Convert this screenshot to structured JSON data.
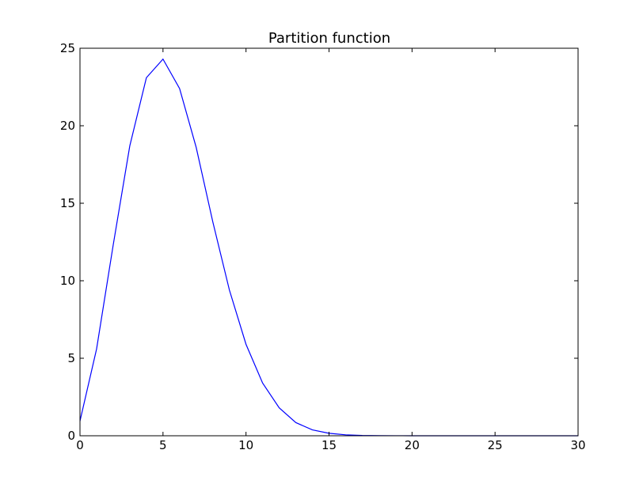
{
  "chart_data": {
    "type": "line",
    "title": "Partition function",
    "xlabel": "",
    "ylabel": "",
    "xlim": [
      0,
      30
    ],
    "ylim": [
      0,
      25
    ],
    "xticks": [
      0,
      5,
      10,
      15,
      20,
      25,
      30
    ],
    "yticks": [
      0,
      5,
      10,
      15,
      20,
      25
    ],
    "grid": false,
    "legend": "none",
    "series": [
      {
        "color": "#0000ff",
        "x": [
          0,
          1,
          2,
          3,
          4,
          5,
          6,
          7,
          8,
          9,
          10,
          11,
          12,
          13,
          14,
          15,
          16,
          17,
          18,
          19,
          20,
          21,
          22,
          23,
          24,
          25,
          26,
          27,
          28,
          29,
          30
        ],
        "y": [
          0.95,
          5.6,
          12.3,
          18.7,
          23.1,
          24.3,
          22.4,
          18.6,
          13.8,
          9.4,
          5.9,
          3.4,
          1.8,
          0.85,
          0.38,
          0.16,
          0.06,
          0.02,
          0.008,
          0.003,
          0.001,
          0,
          0,
          0,
          0,
          0,
          0,
          0,
          0,
          0,
          0
        ]
      }
    ]
  }
}
